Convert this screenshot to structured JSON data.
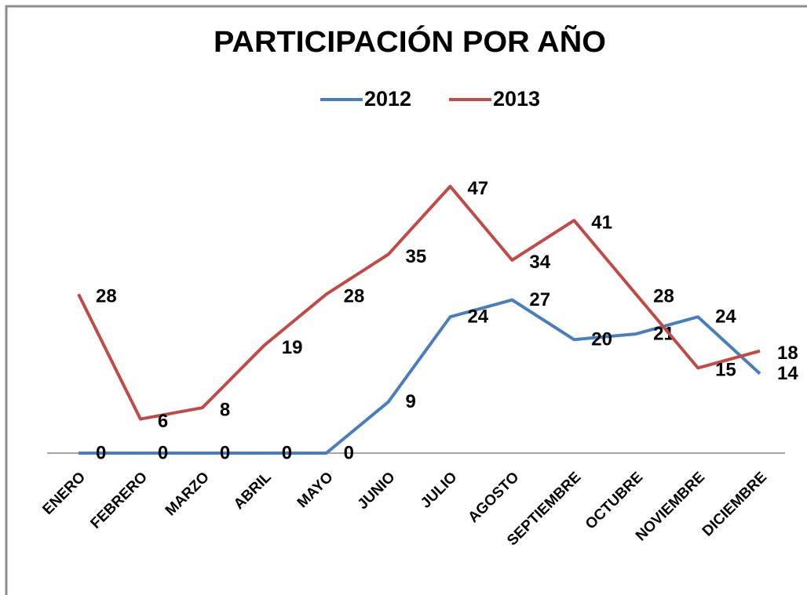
{
  "chart_data": {
    "type": "line",
    "title": "PARTICIPACIÓN POR AÑO",
    "categories": [
      "ENERO",
      "FEBRERO",
      "MARZO",
      "ABRIL",
      "MAYO",
      "JUNIO",
      "JULIO",
      "AGOSTO",
      "SEPTIEMBRE",
      "OCTUBRE",
      "NOVIEMBRE",
      "DICIEMBRE"
    ],
    "series": [
      {
        "name": "2012",
        "color": "#4a7ebb",
        "values": [
          0,
          0,
          0,
          0,
          0,
          9,
          24,
          27,
          20,
          21,
          24,
          14
        ]
      },
      {
        "name": "2013",
        "color": "#be4b48",
        "values": [
          28,
          6,
          8,
          19,
          28,
          35,
          47,
          34,
          41,
          28,
          15,
          18
        ]
      }
    ],
    "ylim": [
      0,
      50
    ],
    "legend": "top"
  }
}
